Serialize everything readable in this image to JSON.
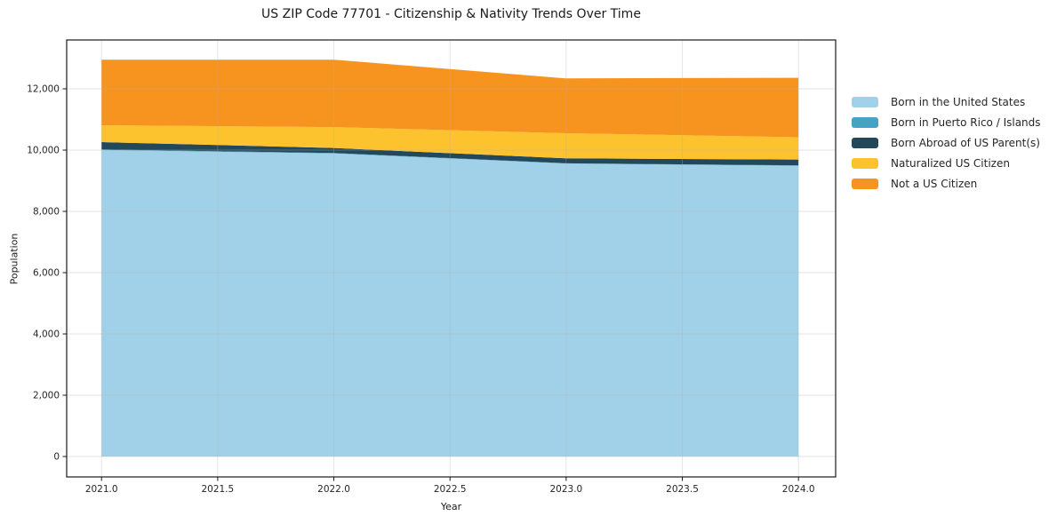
{
  "chart_data": {
    "type": "area",
    "stacked": true,
    "title": "US ZIP Code 77701 - Citizenship & Nativity Trends Over Time",
    "xlabel": "Year",
    "ylabel": "Population",
    "x": [
      2021,
      2022,
      2023,
      2024
    ],
    "series": [
      {
        "name": "Born in the United States",
        "color": "#a1d1e8",
        "values": [
          10000,
          9890,
          9560,
          9490
        ]
      },
      {
        "name": "Born in Puerto Rico / Islands",
        "color": "#46a3c4",
        "values": [
          20,
          15,
          10,
          10
        ]
      },
      {
        "name": "Born Abroad of US Parent(s)",
        "color": "#23485c",
        "values": [
          240,
          165,
          160,
          190
        ]
      },
      {
        "name": "Naturalized US Citizen",
        "color": "#fdc32f",
        "values": [
          550,
          680,
          820,
          730
        ]
      },
      {
        "name": "Not a US Citizen",
        "color": "#f7941f",
        "values": [
          2140,
          2200,
          1790,
          1940
        ]
      }
    ],
    "totals": [
      12950,
      12950,
      12340,
      12360
    ],
    "xlim": [
      2020.85,
      2024.16
    ],
    "ylim": [
      -667,
      13594
    ],
    "xticks": [
      2021.0,
      2021.5,
      2022.0,
      2022.5,
      2023.0,
      2023.5,
      2024.0
    ],
    "yticks": [
      0,
      2000,
      4000,
      6000,
      8000,
      10000,
      12000
    ],
    "grid": true,
    "grid_color": "#b0b0b0",
    "legend_position": "right"
  },
  "style": {
    "spine_color": "#1a1a1a",
    "tick_color": "#1a1a1a",
    "tick_label_color": "#262626",
    "background": "#ffffff"
  }
}
